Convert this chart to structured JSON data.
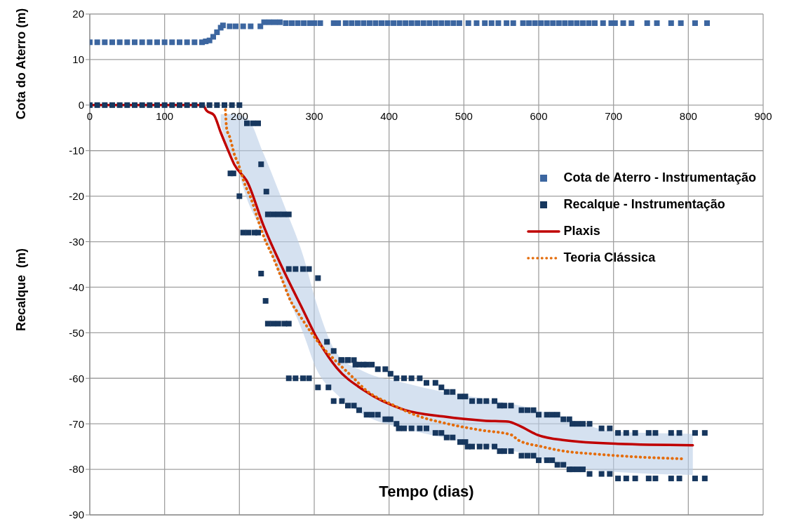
{
  "chart_data": {
    "type": "scatter",
    "xlabel": "Tempo (dias)",
    "ylabel": "Recalque  (m)",
    "annotations": [
      "Cota do Aterro (m)"
    ],
    "xlim": [
      0,
      900
    ],
    "xticks": [
      0,
      100,
      200,
      300,
      400,
      500,
      600,
      700,
      800,
      900
    ],
    "ylim": [
      -90,
      20
    ],
    "yticks": [
      -90,
      -80,
      -70,
      -60,
      -50,
      -40,
      -30,
      -20,
      -10,
      0,
      10,
      20
    ],
    "grid": true,
    "legend": "right",
    "series": [
      {
        "name": "Cota de Aterro - Instrumentação",
        "marker": "square",
        "color": "#3c66a0",
        "x": [
          0,
          10,
          20,
          30,
          40,
          50,
          60,
          70,
          80,
          90,
          100,
          110,
          120,
          130,
          140,
          150,
          155,
          160,
          165,
          170,
          175,
          178,
          187,
          195,
          205,
          215,
          228,
          233,
          240,
          247,
          254,
          262,
          270,
          278,
          286,
          294,
          300,
          308,
          326,
          332,
          342,
          350,
          358,
          366,
          374,
          382,
          390,
          398,
          406,
          414,
          422,
          430,
          438,
          446,
          454,
          462,
          470,
          478,
          486,
          494,
          506,
          517,
          528,
          537,
          546,
          557,
          566,
          579,
          587,
          595,
          603,
          611,
          619,
          627,
          635,
          643,
          651,
          659,
          667,
          675,
          686,
          697,
          702,
          713,
          724,
          745,
          758,
          777,
          790,
          809,
          825
        ],
        "values": [
          13.8,
          13.8,
          13.8,
          13.8,
          13.8,
          13.8,
          13.8,
          13.8,
          13.8,
          13.8,
          13.8,
          13.8,
          13.8,
          13.8,
          13.8,
          13.8,
          14,
          14.2,
          15,
          16,
          17,
          17.5,
          17.3,
          17.3,
          17.3,
          17.3,
          17.3,
          18.2,
          18.2,
          18.2,
          18.2,
          18,
          18,
          18,
          18,
          18,
          18,
          18,
          18,
          18,
          18,
          18,
          18,
          18,
          18,
          18,
          18,
          18,
          18,
          18,
          18,
          18,
          18,
          18,
          18,
          18,
          18,
          18,
          18,
          18,
          18,
          18,
          18,
          18,
          18,
          18,
          18,
          18,
          18,
          18,
          18,
          18,
          18,
          18,
          18,
          18,
          18,
          18,
          18,
          18,
          18,
          18,
          18,
          18,
          18,
          18,
          18,
          18,
          18,
          18,
          18
        ]
      },
      {
        "name": "Recalque - Instrumentação",
        "marker": "square",
        "color": "#17375e",
        "x": [
          0,
          10,
          20,
          30,
          40,
          50,
          60,
          70,
          80,
          90,
          100,
          110,
          120,
          130,
          140,
          150,
          160,
          170,
          180,
          190,
          200,
          210,
          218,
          225,
          229,
          188,
          192,
          236,
          200,
          238,
          245,
          252,
          259,
          266,
          205,
          212,
          220,
          225,
          266,
          275,
          285,
          293,
          229,
          305,
          235,
          238,
          245,
          252,
          260,
          266,
          317,
          326,
          336,
          345,
          355,
          366,
          266,
          275,
          285,
          293,
          305,
          319,
          326,
          337,
          345,
          353,
          360,
          370,
          377,
          385,
          395,
          402,
          410,
          420,
          430,
          441,
          450,
          462,
          470,
          477,
          485,
          495,
          502,
          511,
          521,
          530,
          541,
          548,
          554,
          563,
          577,
          585,
          593,
          600,
          611,
          618,
          625,
          633,
          641,
          645,
          652,
          659,
          668,
          684,
          695,
          706,
          717,
          729,
          747,
          756,
          777,
          788,
          809,
          822,
          337,
          345,
          353,
          360,
          370,
          377,
          385,
          395,
          402,
          410,
          413,
          420,
          430,
          441,
          450,
          462,
          470,
          477,
          485,
          495,
          502,
          505,
          511,
          521,
          530,
          541,
          548,
          554,
          563,
          577,
          585,
          593,
          600,
          611,
          618,
          625,
          633,
          641,
          645,
          652,
          659,
          668,
          684,
          695,
          706,
          717,
          729,
          747,
          756,
          777,
          788,
          809,
          822
        ],
        "values": [
          0,
          0,
          0,
          0,
          0,
          0,
          0,
          0,
          0,
          0,
          0,
          0,
          0,
          0,
          0,
          0,
          0,
          0,
          0,
          0,
          0,
          -4,
          -4,
          -4,
          -13,
          -15,
          -15,
          -19,
          -20,
          -24,
          -24,
          -24,
          -24,
          -24,
          -28,
          -28,
          -28,
          -28,
          -36,
          -36,
          -36,
          -36,
          -37,
          -38,
          -43,
          -48,
          -48,
          -48,
          -48,
          -48,
          -52,
          -54,
          -56,
          -56,
          -57,
          -57,
          -60,
          -60,
          -60,
          -60,
          -62,
          -62,
          -65,
          -56,
          -56,
          -56,
          -57,
          -57,
          -57,
          -58,
          -58,
          -59,
          -60,
          -60,
          -60,
          -60,
          -61,
          -61,
          -62,
          -63,
          -63,
          -64,
          -64,
          -65,
          -65,
          -65,
          -65,
          -66,
          -66,
          -66,
          -67,
          -67,
          -67,
          -68,
          -68,
          -68,
          -68,
          -69,
          -69,
          -70,
          -70,
          -70,
          -70,
          -71,
          -71,
          -72,
          -72,
          -72,
          -72,
          -72,
          -72,
          -72,
          -72,
          -72,
          -65,
          -66,
          -66,
          -67,
          -68,
          -68,
          -68,
          -69,
          -69,
          -70,
          -71,
          -71,
          -71,
          -71,
          -71,
          -72,
          -72,
          -73,
          -73,
          -74,
          -74,
          -75,
          -75,
          -75,
          -75,
          -75,
          -76,
          -76,
          -76,
          -77,
          -77,
          -77,
          -78,
          -78,
          -78,
          -79,
          -79,
          -80,
          -80,
          -80,
          -80,
          -81,
          -81,
          -81,
          -82,
          -82,
          -82,
          -82,
          -82,
          -82,
          -82,
          -82,
          -82
        ]
      },
      {
        "name": "Plaxis",
        "type": "line",
        "marker": "none",
        "line_style": "solid",
        "color": "#c00000",
        "x": [
          0,
          151,
          156,
          166,
          175,
          184,
          193,
          211,
          232,
          261,
          285,
          303,
          330,
          366,
          420,
          473,
          527,
          559,
          575,
          598,
          634,
          706,
          806
        ],
        "values": [
          0,
          0,
          -1.2,
          -2.2,
          -6,
          -9.6,
          -13,
          -17,
          -26.4,
          -37,
          -45,
          -51,
          -57.7,
          -62.6,
          -66.9,
          -68.4,
          -69.3,
          -69.5,
          -70.5,
          -72.4,
          -73.6,
          -74.4,
          -74.7
        ],
        "lower": [
          null,
          null,
          null,
          null,
          -4.5,
          -9,
          -12,
          -21,
          -28.4,
          -40.5,
          -50,
          -58,
          -63.5,
          -68,
          -71,
          -73,
          -75,
          -75.8,
          -76.3,
          -77.5,
          -79.1,
          -80.6,
          -81.2
        ],
        "upper": [
          null,
          null,
          null,
          null,
          -2,
          -2,
          -2,
          -3,
          -10.6,
          -22.5,
          -33,
          -43.5,
          -54.5,
          -58.5,
          -61,
          -63,
          -64.5,
          -65.5,
          -66,
          -67,
          -68.7,
          -71.8,
          -72.2
        ]
      },
      {
        "name": "Teoria Clássica",
        "type": "line",
        "marker": "none",
        "line_style": "dotted",
        "color": "#e46c0a",
        "x": [
          181,
          183,
          187,
          190,
          193,
          198,
          208,
          215,
          225,
          234,
          245,
          257,
          269,
          281,
          297,
          309,
          327,
          351,
          369,
          402,
          441,
          473,
          523,
          563,
          573,
          604,
          634,
          673,
          724,
          795
        ],
        "values": [
          0,
          -5.2,
          -7,
          -8.8,
          -10.7,
          -12.7,
          -17.7,
          -20.3,
          -25.3,
          -29.5,
          -33.4,
          -38.3,
          -43.2,
          -46.3,
          -50.2,
          -52.8,
          -55.9,
          -59.7,
          -62.6,
          -65.6,
          -68.4,
          -69.8,
          -71.4,
          -72.4,
          -73.6,
          -75,
          -76,
          -76.6,
          -77.2,
          -77.7
        ]
      }
    ]
  }
}
